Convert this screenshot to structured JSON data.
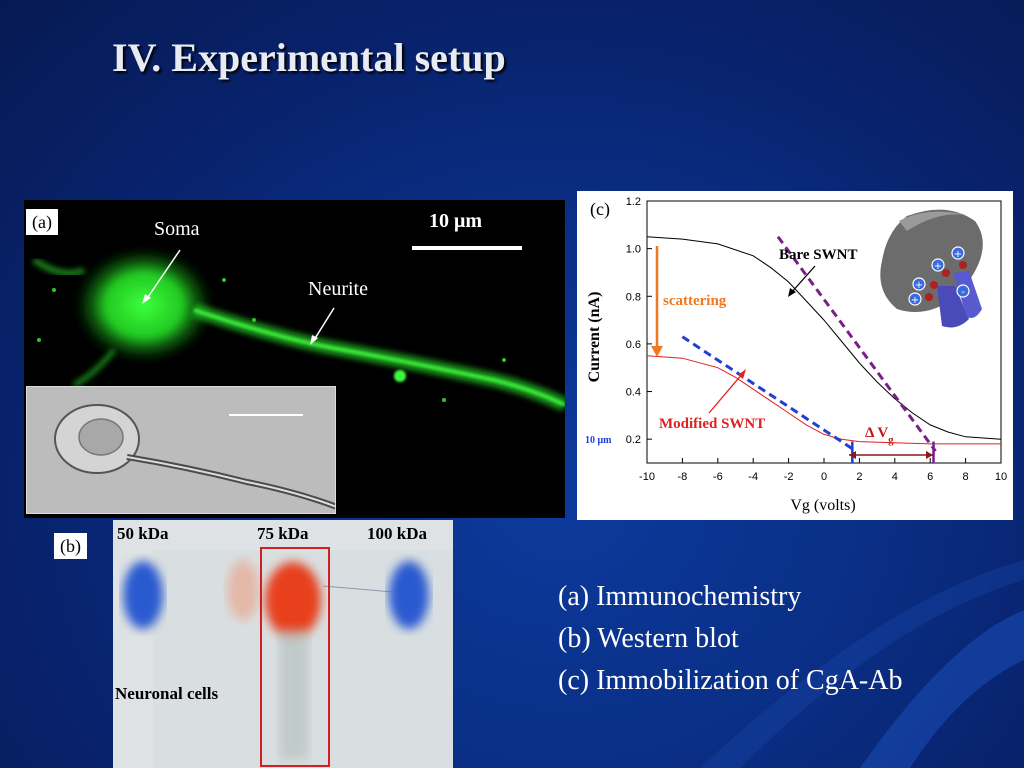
{
  "slide": {
    "title": "IV. Experimental setup"
  },
  "panel_a": {
    "label": "(a)",
    "soma_label": "Soma",
    "neurite_label": "Neurite",
    "scale_label": "10 μm"
  },
  "panel_b": {
    "label": "(b)",
    "marker_50": "50 kDa",
    "marker_75": "75 kDa",
    "marker_100": "100 kDa",
    "neuronal_label": "Neuronal cells"
  },
  "panel_c": {
    "label": "(c)",
    "bare_label": "Bare SWNT",
    "modified_label": "Modified SWNT",
    "scattering_label": "scattering",
    "delta_label": "Δ V",
    "delta_sub": "g",
    "small_scale": "10 μm",
    "chart_data": {
      "type": "line",
      "xlabel": "Vg (volts)",
      "ylabel": "Current (nA)",
      "xlim": [
        -10,
        10
      ],
      "ylim": [
        0.1,
        1.2
      ],
      "x_ticks": [
        "-10",
        "-8",
        "-6",
        "-4",
        "-2",
        "0",
        "2",
        "4",
        "6",
        "8",
        "10"
      ],
      "y_ticks": [
        "0.2",
        "0.4",
        "0.6",
        "0.8",
        "1.0",
        "1.2"
      ],
      "series": [
        {
          "name": "Bare SWNT",
          "color": "#000000",
          "x": [
            -10,
            -8,
            -6,
            -4,
            -3,
            -2,
            -1,
            0,
            1,
            2,
            3,
            4,
            5,
            6,
            7,
            8,
            10
          ],
          "y": [
            1.05,
            1.04,
            1.02,
            0.97,
            0.92,
            0.86,
            0.78,
            0.7,
            0.61,
            0.52,
            0.44,
            0.37,
            0.31,
            0.26,
            0.23,
            0.21,
            0.2
          ]
        },
        {
          "name": "Modified SWNT",
          "color": "#e02020",
          "x": [
            -10,
            -8,
            -6,
            -5,
            -4,
            -3,
            -2,
            -1,
            0,
            1,
            2,
            4,
            6,
            8,
            10
          ],
          "y": [
            0.55,
            0.54,
            0.5,
            0.46,
            0.41,
            0.36,
            0.31,
            0.26,
            0.22,
            0.2,
            0.19,
            0.185,
            0.18,
            0.18,
            0.18
          ]
        }
      ],
      "fit_lines": [
        {
          "color": "#7a1f8a",
          "x": [
            -2.6,
            6.3
          ],
          "y": [
            1.05,
            0.15
          ]
        },
        {
          "color": "#1f3fd6",
          "x": [
            -8.0,
            1.6
          ],
          "y": [
            0.63,
            0.16
          ]
        }
      ]
    }
  },
  "caption": {
    "line1": "(a) Immunochemistry",
    "line2": "(b) Western blot",
    "line3": "(c) Immobilization of CgA-Ab"
  },
  "colors": {
    "background": "#0a2f86",
    "fluorescence": "#28e028",
    "scattering_orange": "#f07820",
    "modified_red": "#e02020",
    "fit_purple": "#7a1f8a",
    "fit_blue": "#1f3fd6"
  }
}
